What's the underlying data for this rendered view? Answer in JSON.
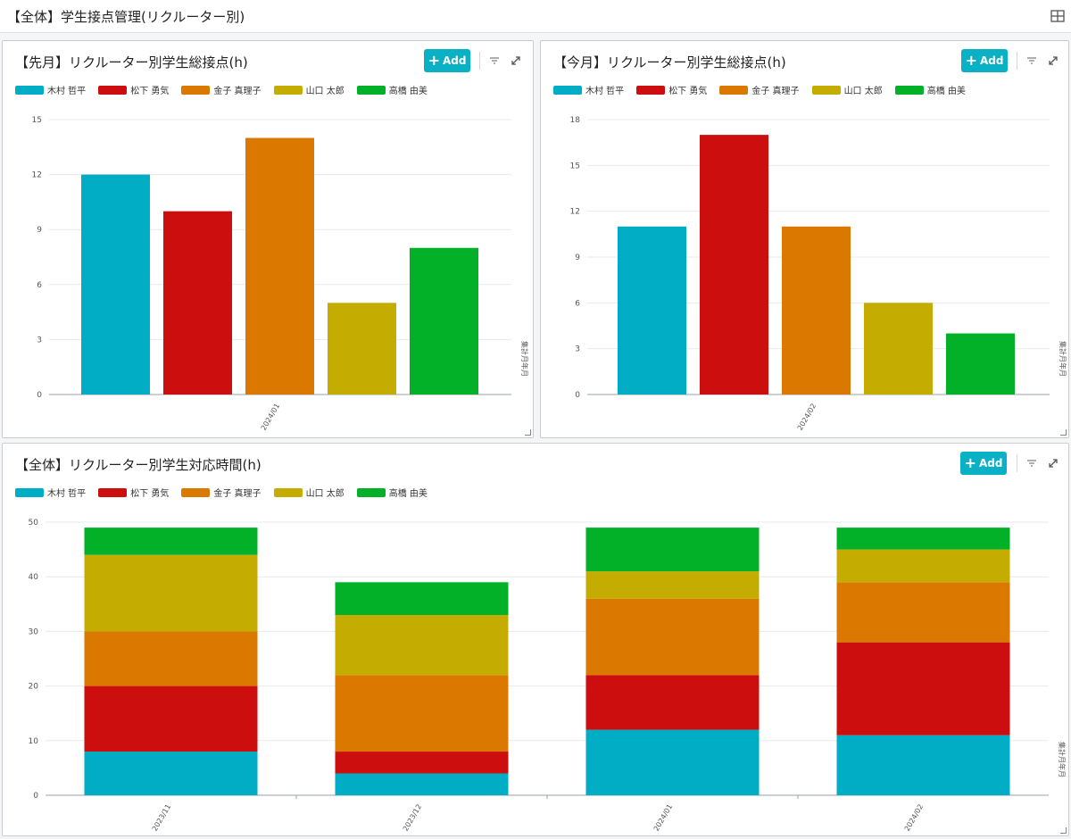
{
  "page": {
    "title": "【全体】学生接点管理(リクルーター別)"
  },
  "legend": [
    {
      "name": "木村 哲平",
      "color": "#00adc4"
    },
    {
      "name": "松下 勇気",
      "color": "#cc0e0e"
    },
    {
      "name": "金子 真理子",
      "color": "#db7800"
    },
    {
      "name": "山口 太郎",
      "color": "#c4ad00"
    },
    {
      "name": "高橋 由美",
      "color": "#02b127"
    }
  ],
  "panels": {
    "last_month": {
      "title": "【先月】リクルーター別学生総接点(h)",
      "add_label": "Add"
    },
    "this_month": {
      "title": "【今月】リクルーター別学生総接点(h)",
      "add_label": "Add"
    },
    "overall": {
      "title": "【全体】リクルーター別学生対応時間(h)",
      "add_label": "Add"
    }
  },
  "chart_data": [
    {
      "type": "bar",
      "title": "【先月】リクルーター別学生総接点(h)",
      "categories": [
        "2024/01"
      ],
      "series": [
        {
          "name": "木村 哲平",
          "values": [
            12
          ]
        },
        {
          "name": "松下 勇気",
          "values": [
            10
          ]
        },
        {
          "name": "金子 真理子",
          "values": [
            14
          ]
        },
        {
          "name": "山口 太郎",
          "values": [
            5
          ]
        },
        {
          "name": "高橋 由美",
          "values": [
            8
          ]
        }
      ],
      "xlabel": "集計月年月",
      "ylim": [
        0,
        15
      ],
      "yticks": [
        0,
        3,
        6,
        9,
        12,
        15
      ],
      "grid": true,
      "legend": "top-left"
    },
    {
      "type": "bar",
      "title": "【今月】リクルーター別学生総接点(h)",
      "categories": [
        "2024/02"
      ],
      "series": [
        {
          "name": "木村 哲平",
          "values": [
            11
          ]
        },
        {
          "name": "松下 勇気",
          "values": [
            17
          ]
        },
        {
          "name": "金子 真理子",
          "values": [
            11
          ]
        },
        {
          "name": "山口 太郎",
          "values": [
            6
          ]
        },
        {
          "name": "高橋 由美",
          "values": [
            4
          ]
        }
      ],
      "xlabel": "集計月年月",
      "ylim": [
        0,
        18
      ],
      "yticks": [
        0,
        3,
        6,
        9,
        12,
        15,
        18
      ],
      "grid": true,
      "legend": "top-left"
    },
    {
      "type": "bar",
      "stacked": true,
      "title": "【全体】リクルーター別学生対応時間(h)",
      "categories": [
        "2023/11",
        "2023/12",
        "2024/01",
        "2024/02"
      ],
      "series": [
        {
          "name": "木村 哲平",
          "values": [
            8,
            4,
            12,
            11
          ]
        },
        {
          "name": "松下 勇気",
          "values": [
            12,
            4,
            10,
            17
          ]
        },
        {
          "name": "金子 真理子",
          "values": [
            10,
            14,
            14,
            11
          ]
        },
        {
          "name": "山口 太郎",
          "values": [
            14,
            11,
            5,
            6
          ]
        },
        {
          "name": "高橋 由美",
          "values": [
            5,
            6,
            8,
            4
          ]
        }
      ],
      "xlabel": "集計月年月",
      "ylim": [
        0,
        50
      ],
      "yticks": [
        0,
        10,
        20,
        30,
        40,
        50
      ],
      "grid": true,
      "legend": "top-left"
    }
  ]
}
